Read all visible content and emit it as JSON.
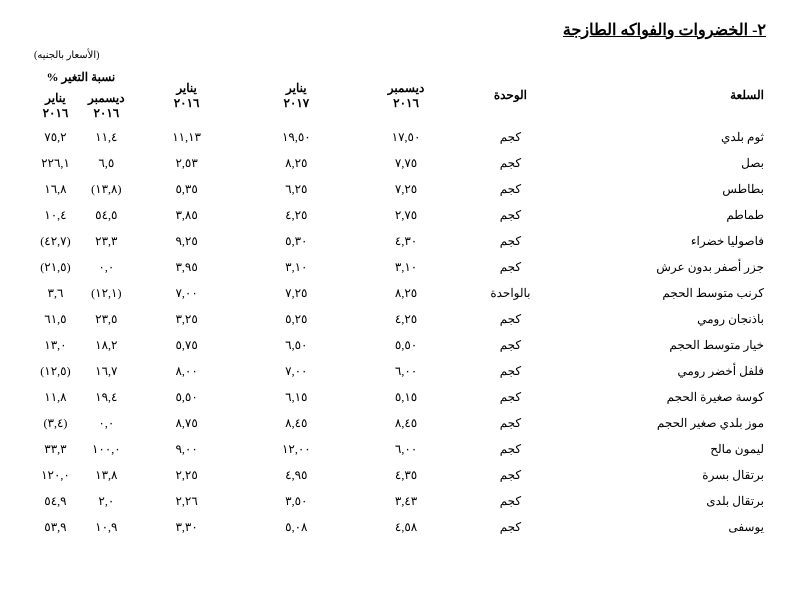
{
  "title": "٢- الخضروات والفواكه الطازجة",
  "note": "(الأسعار بالجنيه)",
  "headers": {
    "item": "السلعة",
    "unit": "الوحدة",
    "dec2016": "ديسمبر",
    "dec2016_y": "٢٠١٦",
    "jan2017": "يناير",
    "jan2017_y": "٢٠١٧",
    "jan2016": "يناير",
    "jan2016_y": "٢٠١٦",
    "pct_group": "نسبة التغير %",
    "pct_dec": "ديسمبر",
    "pct_dec_y": "٢٠١٦",
    "pct_jan": "يناير",
    "pct_jan_y": "٢٠١٦"
  },
  "rows": [
    {
      "item": "ثوم بلدي",
      "unit": "كجم",
      "dec2016": "١٧,٥٠",
      "jan2017": "١٩,٥٠",
      "jan2016": "١١,١٣",
      "pct_dec": "١١,٤",
      "pct_jan": "٧٥,٢"
    },
    {
      "item": "بصل",
      "unit": "كجم",
      "dec2016": "٧,٧٥",
      "jan2017": "٨,٢٥",
      "jan2016": "٢,٥٣",
      "pct_dec": "٦,٥",
      "pct_jan": "٢٢٦,١"
    },
    {
      "item": "بطاطس",
      "unit": "كجم",
      "dec2016": "٧,٢٥",
      "jan2017": "٦,٢٥",
      "jan2016": "٥,٣٥",
      "pct_dec": "(١٣,٨)",
      "pct_jan": "١٦,٨"
    },
    {
      "item": "طماطم",
      "unit": "كجم",
      "dec2016": "٢,٧٥",
      "jan2017": "٤,٢٥",
      "jan2016": "٣,٨٥",
      "pct_dec": "٥٤,٥",
      "pct_jan": "١٠,٤"
    },
    {
      "item": "فاصوليا خضراء",
      "unit": "كجم",
      "dec2016": "٤,٣٠",
      "jan2017": "٥,٣٠",
      "jan2016": "٩,٢٥",
      "pct_dec": "٢٣,٣",
      "pct_jan": "(٤٢,٧)"
    },
    {
      "item": "جزر أصفر بدون عرش",
      "unit": "كجم",
      "dec2016": "٣,١٠",
      "jan2017": "٣,١٠",
      "jan2016": "٣,٩٥",
      "pct_dec": "٠,٠",
      "pct_jan": "(٢١,٥)"
    },
    {
      "item": "كرنب متوسط الحجم",
      "unit": "بالواحدة",
      "dec2016": "٨,٢٥",
      "jan2017": "٧,٢٥",
      "jan2016": "٧,٠٠",
      "pct_dec": "(١٢,١)",
      "pct_jan": "٣,٦"
    },
    {
      "item": "باذنجان رومي",
      "unit": "كجم",
      "dec2016": "٤,٢٥",
      "jan2017": "٥,٢٥",
      "jan2016": "٣,٢٥",
      "pct_dec": "٢٣,٥",
      "pct_jan": "٦١,٥"
    },
    {
      "item": "خيار متوسط الحجم",
      "unit": "كجم",
      "dec2016": "٥,٥٠",
      "jan2017": "٦,٥٠",
      "jan2016": "٥,٧٥",
      "pct_dec": "١٨,٢",
      "pct_jan": "١٣,٠"
    },
    {
      "item": "فلفل أخضر رومي",
      "unit": "كجم",
      "dec2016": "٦,٠٠",
      "jan2017": "٧,٠٠",
      "jan2016": "٨,٠٠",
      "pct_dec": "١٦,٧",
      "pct_jan": "(١٢,٥)"
    },
    {
      "item": "كوسة صغيرة الحجم",
      "unit": "كجم",
      "dec2016": "٥,١٥",
      "jan2017": "٦,١٥",
      "jan2016": "٥,٥٠",
      "pct_dec": "١٩,٤",
      "pct_jan": "١١,٨"
    },
    {
      "item": "موز بلدي صغير الحجم",
      "unit": "كجم",
      "dec2016": "٨,٤٥",
      "jan2017": "٨,٤٥",
      "jan2016": "٨,٧٥",
      "pct_dec": "٠,٠",
      "pct_jan": "(٣,٤)"
    },
    {
      "item": "ليمون مالح",
      "unit": "كجم",
      "dec2016": "٦,٠٠",
      "jan2017": "١٢,٠٠",
      "jan2016": "٩,٠٠",
      "pct_dec": "١٠٠,٠",
      "pct_jan": "٣٣,٣"
    },
    {
      "item": "برتقال بسرة",
      "unit": "كجم",
      "dec2016": "٤,٣٥",
      "jan2017": "٤,٩٥",
      "jan2016": "٢,٢٥",
      "pct_dec": "١٣,٨",
      "pct_jan": "١٢٠,٠"
    },
    {
      "item": "برتقال بلدى",
      "unit": "كجم",
      "dec2016": "٣,٤٣",
      "jan2017": "٣,٥٠",
      "jan2016": "٢,٢٦",
      "pct_dec": "٢,٠",
      "pct_jan": "٥٤,٩"
    },
    {
      "item": "يوسفى",
      "unit": "كجم",
      "dec2016": "٤,٥٨",
      "jan2017": "٥,٠٨",
      "jan2016": "٣,٣٠",
      "pct_dec": "١٠,٩",
      "pct_jan": "٥٣,٩"
    }
  ]
}
